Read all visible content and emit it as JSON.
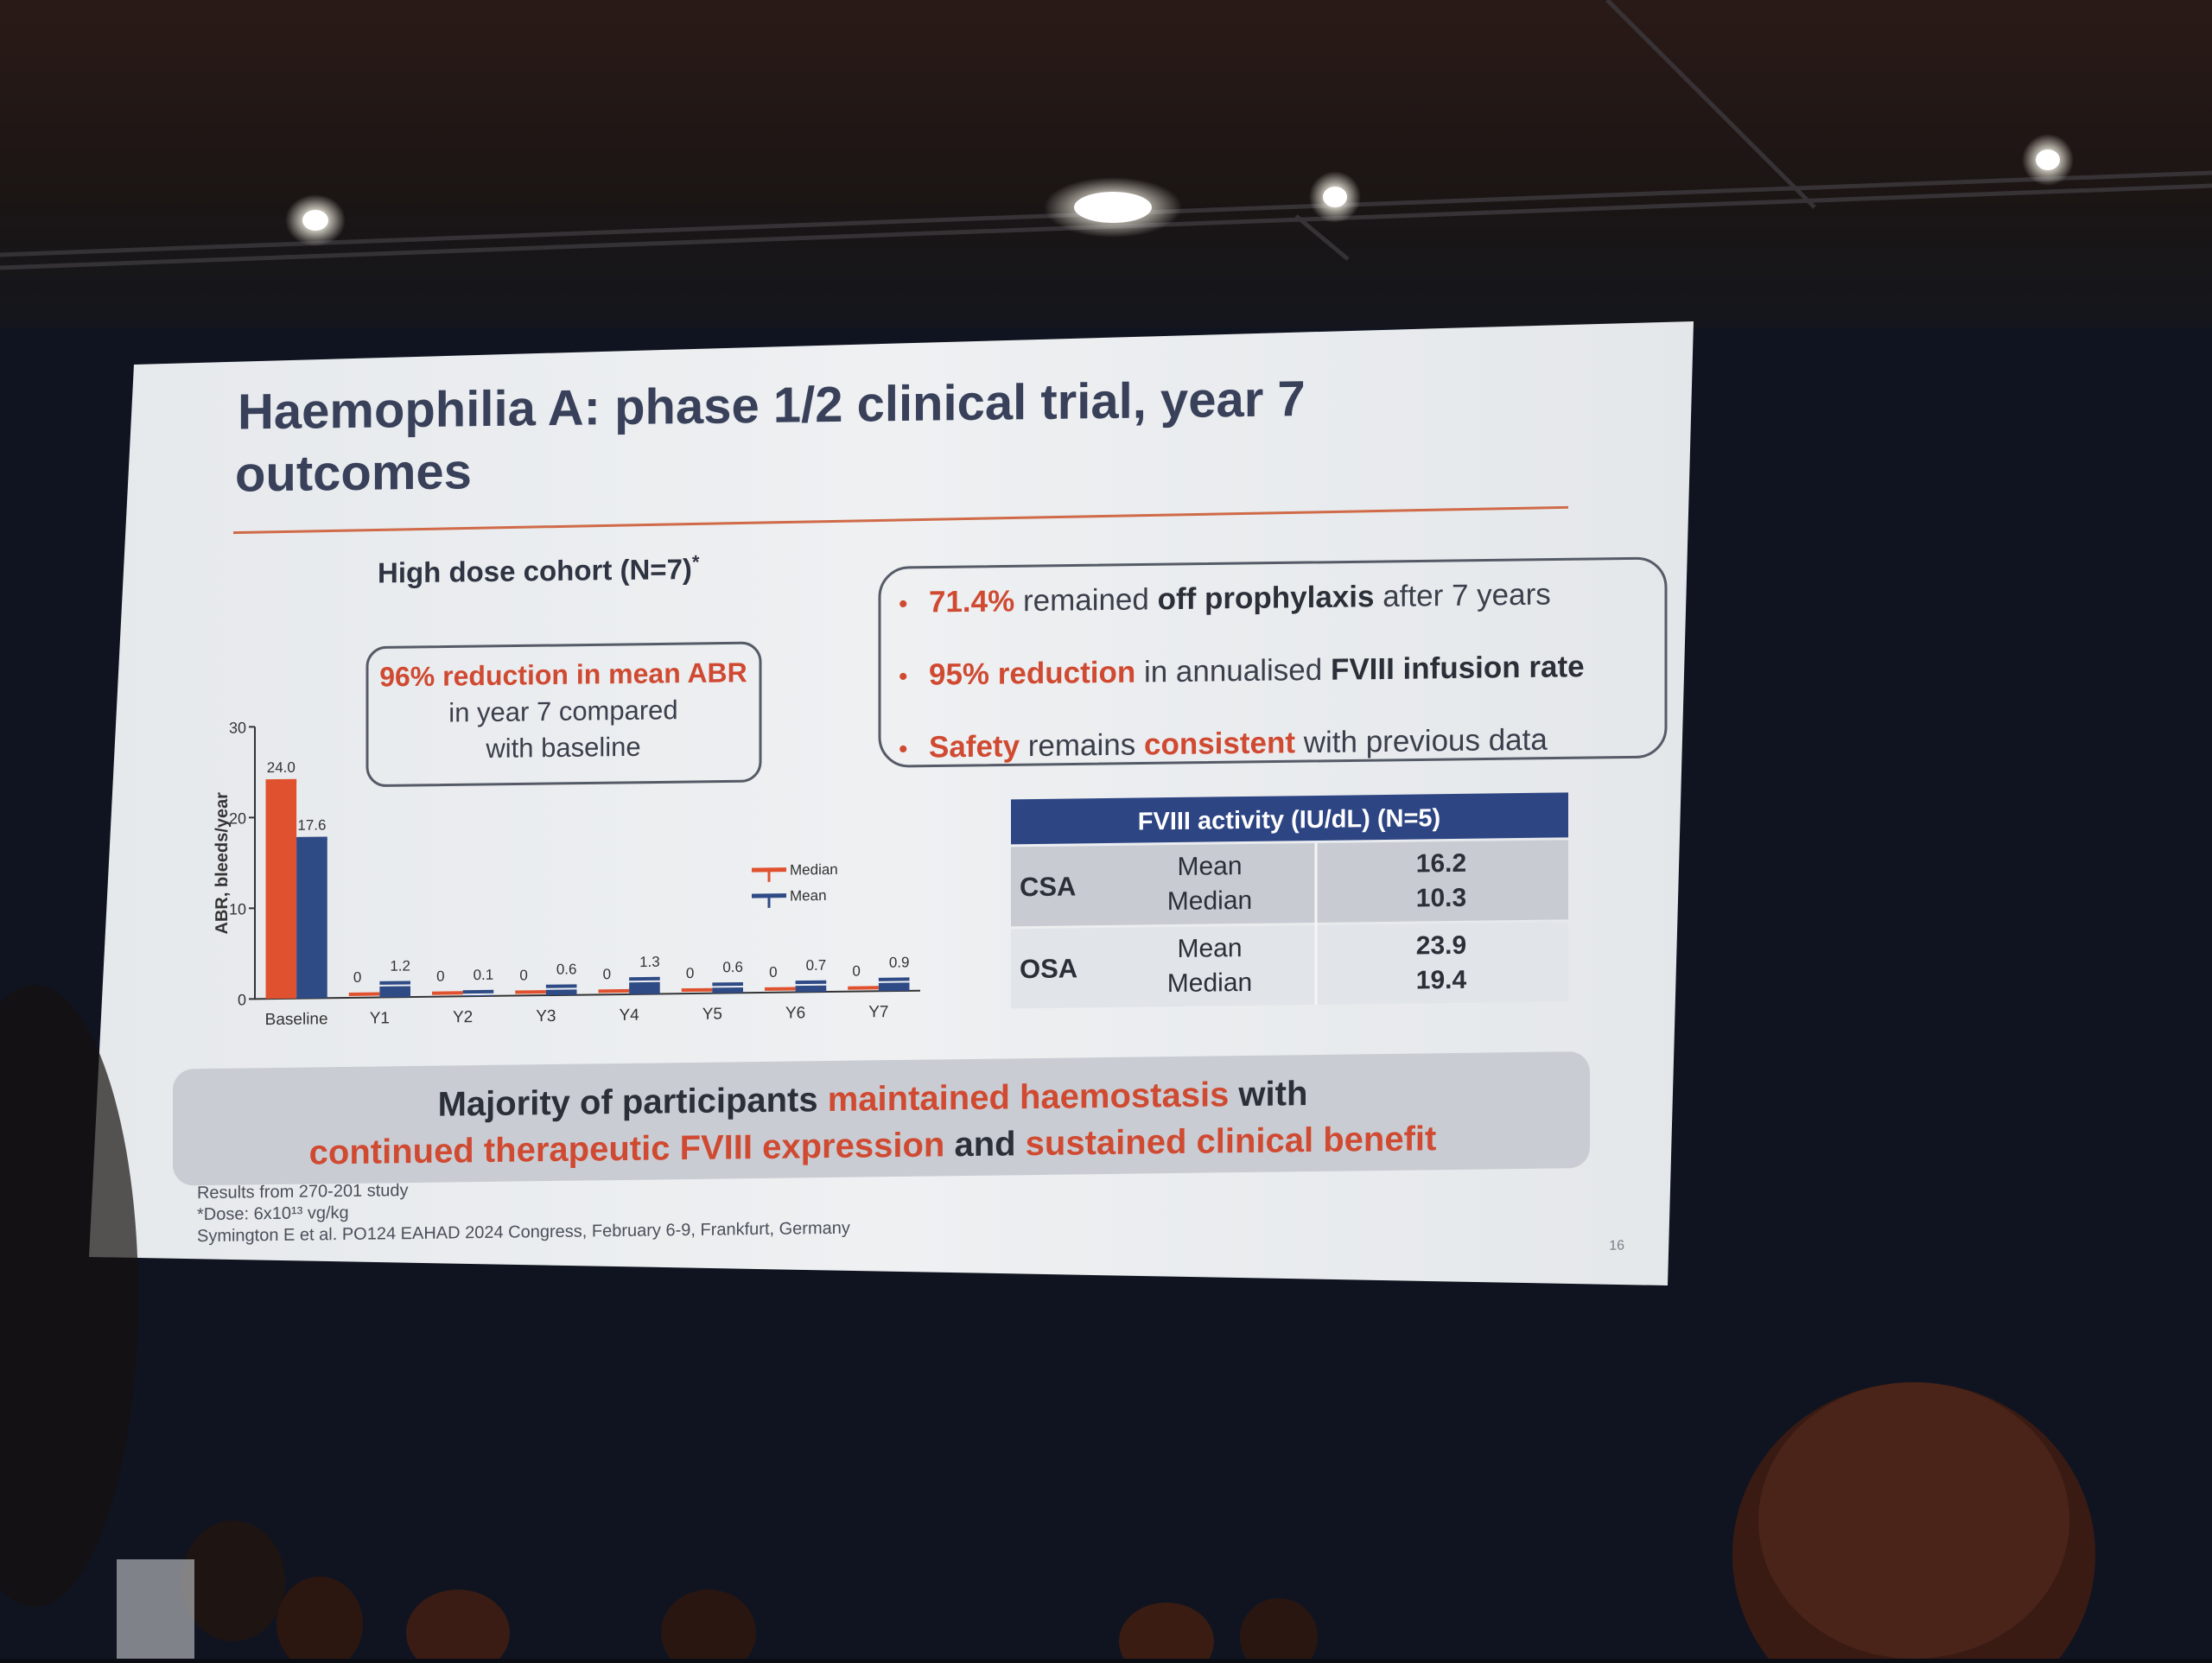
{
  "slide": {
    "title_line1": "Haemophilia A: phase 1/2 clinical trial, year 7",
    "title_line2": "outcomes",
    "cohort_label": "High dose cohort (N=7)",
    "cohort_mark": "*",
    "callout": {
      "line1": "96% reduction in mean ABR",
      "line2": "in year 7 compared",
      "line3": "with baseline"
    },
    "bullets": [
      {
        "pre": "",
        "red": "71.4%",
        "mid": " remained ",
        "bold": "off prophylaxis",
        "post": " after 7 years"
      },
      {
        "pre": "",
        "red": "95% reduction",
        "mid": " in annualised ",
        "bold": "FVIII infusion rate",
        "post": ""
      },
      {
        "pre": "",
        "red": "Safety",
        "mid": " remains ",
        "red2": "consistent",
        "post": " with previous data"
      }
    ],
    "table": {
      "header": "FVIII activity (IU/dL) (N=5)",
      "rows": [
        {
          "group": "CSA",
          "stat1": "Mean",
          "val1": "16.2",
          "stat2": "Median",
          "val2": "10.3"
        },
        {
          "group": "OSA",
          "stat1": "Mean",
          "val1": "23.9",
          "stat2": "Median",
          "val2": "19.4"
        }
      ]
    },
    "banner": {
      "l1_a": "Majority of participants ",
      "l1_b": "maintained haemostasis",
      "l1_c": " with",
      "l2_a": "continued therapeutic FVIII expression",
      "l2_b": " and ",
      "l2_c": "sustained clinical benefit"
    },
    "footnotes": {
      "f1": "Results from 270-201 study",
      "f2": "*Dose: 6x10¹³ vg/kg",
      "f3": "Symington E et al. PO124 EAHAD 2024 Congress, February 6-9, Frankfurt, Germany"
    },
    "page_number": "16"
  },
  "chart_data": {
    "type": "bar",
    "ylabel": "ABR, bleeds/year",
    "ylim": [
      0,
      30
    ],
    "yticks": [
      "0",
      "10",
      "20",
      "30"
    ],
    "categories": [
      "Baseline",
      "Y1",
      "Y2",
      "Y3",
      "Y4",
      "Y5",
      "Y6",
      "Y7"
    ],
    "series": [
      {
        "name": "Median",
        "color": "#e0522f",
        "values": [
          24.0,
          0,
          0,
          0,
          0,
          0,
          0,
          0
        ],
        "labels": [
          "24.0",
          "0",
          "0",
          "0",
          "0",
          "0",
          "0",
          "0"
        ]
      },
      {
        "name": "Mean",
        "color": "#2f4b86",
        "values": [
          17.6,
          1.2,
          0.1,
          0.6,
          1.3,
          0.6,
          0.7,
          0.9
        ],
        "labels": [
          "17.6",
          "1.2",
          "0.1",
          "0.6",
          "1.3",
          "0.6",
          "0.7",
          "0.9"
        ]
      }
    ],
    "legend": "top-right"
  },
  "colors": {
    "accent_red": "#d04a32",
    "navy": "#2e4584",
    "slide_bg": "#e9ecef"
  }
}
